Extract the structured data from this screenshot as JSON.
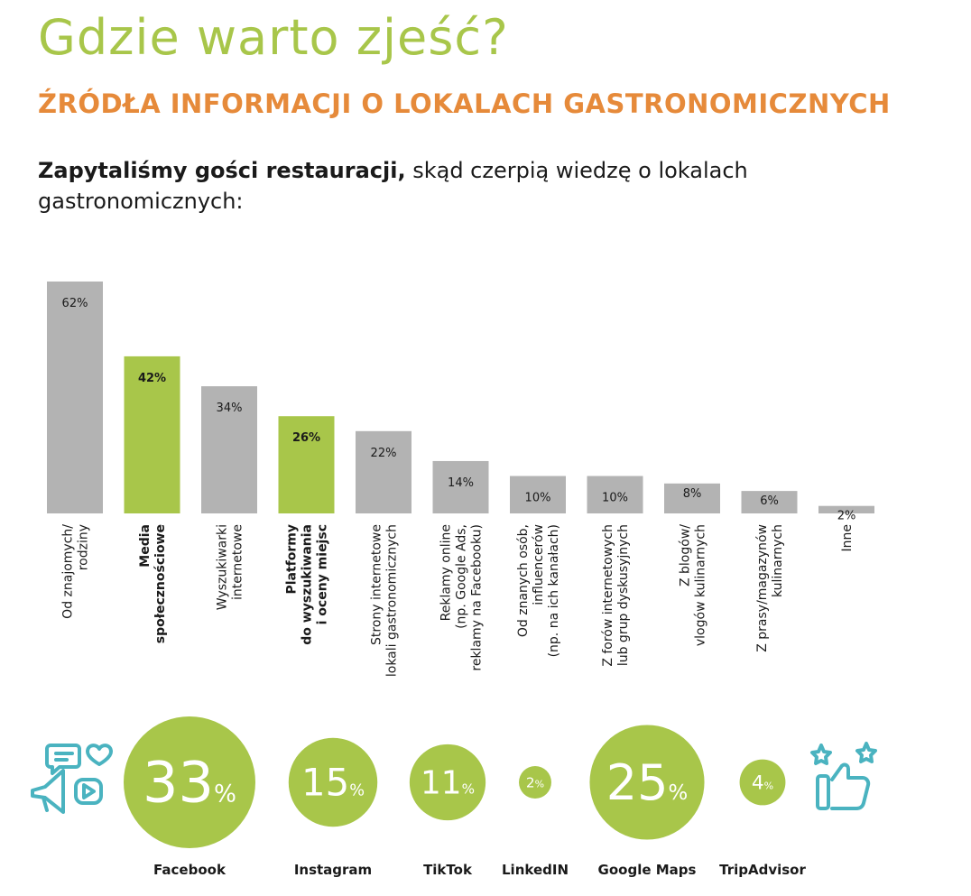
{
  "header": {
    "title": "Gdzie warto zjeść?",
    "subtitle": "ŹRÓDŁA INFORMACJI O LOKALACH GASTRONOMICZNYCH",
    "intro_bold": "Zapytaliśmy gości restauracji,",
    "intro_rest": " skąd czerpią wiedzę o lokalach gastronomicznych:"
  },
  "colors": {
    "gray_bar": "#b3b3b3",
    "green_accent": "#a8c64a",
    "orange_heading": "#e68a3a",
    "teal_icon": "#4ab3c0"
  },
  "icons": {
    "left": "social-media-icon",
    "right": "thumbs-up-stars-icon"
  },
  "chart_data": [
    {
      "type": "bar",
      "categories": [
        [
          "Od znajomych/",
          "rodziny"
        ],
        [
          "Media",
          "społecznościowe"
        ],
        [
          "Wyszukiwarki",
          "internetowe"
        ],
        [
          "Platformy",
          "do wyszukiwania",
          "i oceny miejsc"
        ],
        [
          "Strony internetowe",
          "lokali gastronomicznych"
        ],
        [
          "Reklamy online",
          "(np. Google Ads,",
          "reklamy na Facebooku)"
        ],
        [
          "Od znanych osób,",
          "influencerów",
          "(np. na ich kanałach)"
        ],
        [
          "Z forów internetowych",
          "lub grup dyskusyjnych"
        ],
        [
          "Z blogów/",
          "vlogów kulinarnych"
        ],
        [
          "Z prasy/magazynów",
          "kulinarnych"
        ],
        [
          "Inne"
        ]
      ],
      "values": [
        62,
        42,
        34,
        26,
        22,
        14,
        10,
        10,
        8,
        6,
        2
      ],
      "labels": [
        "62%",
        "42%",
        "34%",
        "26%",
        "22%",
        "14%",
        "10%",
        "10%",
        "8%",
        "6%",
        "2%"
      ],
      "highlighted": [
        false,
        true,
        false,
        true,
        false,
        false,
        false,
        false,
        false,
        false,
        false
      ],
      "ylim": [
        0,
        62
      ]
    },
    {
      "type": "bubble",
      "categories": [
        "Facebook",
        "Instagram",
        "TikTok",
        "LinkedIN",
        "Google Maps",
        "TripAdvisor"
      ],
      "values": [
        33,
        15,
        11,
        2,
        25,
        4
      ],
      "number_labels": [
        "33",
        "15",
        "11",
        "2",
        "25",
        "4"
      ],
      "unit": "%"
    }
  ]
}
